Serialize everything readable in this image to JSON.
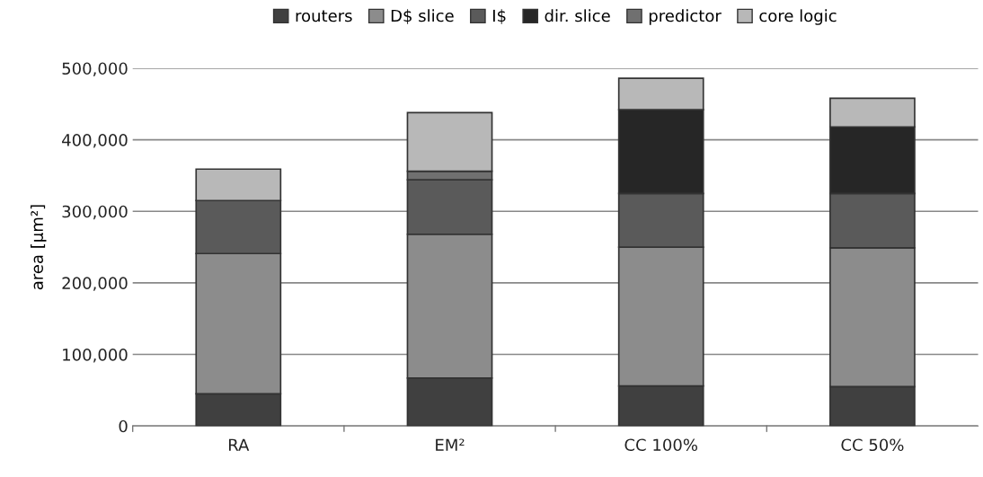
{
  "chart_data": {
    "type": "bar",
    "stacked": true,
    "ylabel": "area [µm²]",
    "categories": [
      "RA",
      "EM²",
      "CC 100%",
      "CC 50%"
    ],
    "series": [
      {
        "name": "routers",
        "color": "#404040",
        "values": [
          45000,
          67000,
          56000,
          55000
        ]
      },
      {
        "name": "D$ slice",
        "color": "#8c8c8c",
        "values": [
          196000,
          201000,
          194000,
          194000
        ]
      },
      {
        "name": "I$",
        "color": "#5a5a5a",
        "values": [
          74000,
          76000,
          75000,
          76000
        ]
      },
      {
        "name": "dir. slice",
        "color": "#262626",
        "values": [
          0,
          0,
          117000,
          93000
        ]
      },
      {
        "name": "predictor",
        "color": "#707070",
        "values": [
          0,
          12000,
          0,
          0
        ]
      },
      {
        "name": "core logic",
        "color": "#b8b8b8",
        "values": [
          44000,
          82000,
          44000,
          40000
        ]
      }
    ],
    "ylim": [
      0,
      500000
    ],
    "yticks": [
      {
        "value": 0,
        "label": "0"
      },
      {
        "value": 100000,
        "label": "100,000"
      },
      {
        "value": 200000,
        "label": "200,000"
      },
      {
        "value": 300000,
        "label": "300,000"
      },
      {
        "value": 400000,
        "label": "400,000"
      },
      {
        "value": 500000,
        "label": "500,000"
      }
    ],
    "grid": "y",
    "legend": "top"
  }
}
